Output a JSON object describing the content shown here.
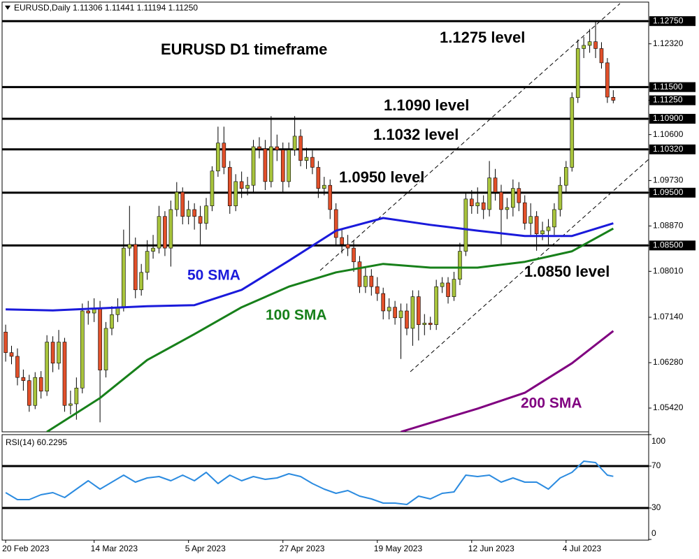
{
  "chart_data": [
    {
      "type": "candlestick",
      "header": "EURUSD,Daily  1.11306 1.11441 1.11194 1.11250",
      "title": "EURUSD D1 timeframe",
      "up_color": "#a8c43c",
      "down_color": "#e2502a",
      "xlim": [
        -0.6,
        109
      ],
      "ylim": [
        1.0497,
        1.1311
      ],
      "yticks": [
        {
          "value": 1.1275,
          "label": "1.12750",
          "highlight": true
        },
        {
          "value": 1.1232,
          "label": "1.12320"
        },
        {
          "value": 1.115,
          "label": "1.11500",
          "highlight": true
        },
        {
          "value": 1.1125,
          "label": "1.11250",
          "highlight": true
        },
        {
          "value": 1.109,
          "label": "1.10900",
          "highlight": true
        },
        {
          "value": 1.106,
          "label": "1.10600"
        },
        {
          "value": 1.1032,
          "label": "1.10320",
          "highlight": true
        },
        {
          "value": 1.0973,
          "label": "1.09730"
        },
        {
          "value": 1.095,
          "label": "1.09500",
          "highlight": true
        },
        {
          "value": 1.0887,
          "label": "1.08870"
        },
        {
          "value": 1.085,
          "label": "1.08500",
          "highlight": true
        },
        {
          "value": 1.0801,
          "label": "1.08010"
        },
        {
          "value": 1.0714,
          "label": "1.07140"
        },
        {
          "value": 1.0628,
          "label": "1.06280"
        },
        {
          "value": 1.0542,
          "label": "1.05420"
        }
      ],
      "levels": [
        {
          "value": 1.1275,
          "label": "1.1275 level"
        },
        {
          "value": 1.115
        },
        {
          "value": 1.109,
          "label": "1.1090 level"
        },
        {
          "value": 1.1032,
          "label": "1.1032 level"
        },
        {
          "value": 1.095,
          "label": "1.0950 level"
        },
        {
          "value": 1.085,
          "label": "1.0850 level"
        }
      ],
      "open": [
        1.0686,
        1.0647,
        1.064,
        1.06,
        1.0594,
        1.0547,
        1.06,
        1.0574,
        1.0667,
        1.0627,
        1.0667,
        1.0547,
        1.055,
        1.058,
        1.0726,
        1.0722,
        1.073,
        1.0614,
        1.0693,
        1.0719,
        1.0733,
        1.0845,
        1.0852,
        1.0766,
        1.0799,
        1.0839,
        1.0845,
        1.0905,
        1.0845,
        1.0918,
        1.0951,
        1.0905,
        1.0918,
        1.0905,
        1.0892,
        1.0925,
        1.0991,
        1.1044,
        1.0998,
        1.0925,
        1.0971,
        1.0958,
        1.0964,
        1.1037,
        1.1033,
        1.0971,
        1.1037,
        1.1031,
        1.0971,
        1.1031,
        1.1057,
        1.1011,
        1.1017,
        1.0998,
        1.0958,
        1.0964,
        1.0918,
        1.0865,
        1.0852,
        1.0845,
        1.0819,
        1.0772,
        1.0792,
        1.0772,
        1.0759,
        1.0726,
        1.0733,
        1.0713,
        1.0726,
        1.0693,
        1.0753,
        1.07,
        1.0703,
        1.07,
        1.0772,
        1.0779,
        1.0753,
        1.0786,
        1.0839,
        1.0938,
        1.0925,
        1.0931,
        1.0918,
        1.0978,
        1.0951,
        1.0918,
        1.0922,
        1.0958,
        1.0931,
        1.0892,
        1.0905,
        1.0872,
        1.0878,
        1.0885,
        1.0918,
        1.0964,
        1.0998,
        1.113,
        1.1223,
        1.1229,
        1.1236,
        1.1223,
        1.1196,
        1.11306
      ],
      "high": [
        1.07,
        1.066,
        1.0655,
        1.0615,
        1.0605,
        1.061,
        1.0612,
        1.068,
        1.0678,
        1.069,
        1.0675,
        1.0575,
        1.06,
        1.074,
        1.0745,
        1.075,
        1.0745,
        1.0705,
        1.0735,
        1.075,
        1.088,
        1.0925,
        1.0865,
        1.0815,
        1.086,
        1.087,
        1.0925,
        1.0915,
        1.0935,
        1.097,
        1.096,
        1.0935,
        1.093,
        1.0925,
        1.094,
        1.1,
        1.1075,
        1.1075,
        1.101,
        1.0985,
        1.099,
        1.098,
        1.105,
        1.1055,
        1.105,
        1.1095,
        1.106,
        1.1045,
        1.1045,
        1.1095,
        1.107,
        1.1035,
        1.103,
        1.101,
        1.098,
        1.0975,
        1.093,
        1.088,
        1.087,
        1.086,
        1.083,
        1.081,
        1.0805,
        1.079,
        1.077,
        1.075,
        1.0745,
        1.074,
        1.074,
        1.0765,
        1.0765,
        1.072,
        1.0715,
        1.0785,
        1.079,
        1.079,
        1.08,
        1.0855,
        1.095,
        1.0955,
        1.096,
        1.0945,
        1.101,
        1.0995,
        1.0965,
        1.094,
        1.0975,
        1.097,
        1.0945,
        1.093,
        1.0915,
        1.0895,
        1.09,
        1.093,
        1.098,
        1.101,
        1.114,
        1.124,
        1.1245,
        1.126,
        1.1275,
        1.1235,
        1.1205,
        1.11441
      ],
      "low": [
        1.063,
        1.0625,
        1.0585,
        1.0575,
        1.0535,
        1.054,
        1.056,
        1.0565,
        1.061,
        1.0615,
        1.0535,
        1.053,
        1.052,
        1.057,
        1.07,
        1.0705,
        1.0515,
        1.06,
        1.068,
        1.0705,
        1.0725,
        1.083,
        1.075,
        1.0755,
        1.0785,
        1.0825,
        1.0835,
        1.083,
        1.081,
        1.0905,
        1.089,
        1.089,
        1.088,
        1.085,
        1.088,
        1.0915,
        1.098,
        1.0985,
        1.091,
        1.0915,
        1.094,
        1.0945,
        1.095,
        1.1015,
        1.0955,
        1.096,
        1.101,
        1.095,
        1.096,
        1.102,
        1.1,
        1.0995,
        1.0985,
        1.094,
        1.0945,
        1.09,
        1.085,
        1.0835,
        1.083,
        1.08,
        1.076,
        1.076,
        1.0755,
        1.0745,
        1.071,
        1.071,
        1.07,
        1.0635,
        1.068,
        1.066,
        1.067,
        1.068,
        1.069,
        1.069,
        1.076,
        1.074,
        1.0745,
        1.0775,
        1.083,
        1.091,
        1.091,
        1.09,
        1.0905,
        1.0935,
        1.085,
        1.09,
        1.0905,
        1.0915,
        1.088,
        1.087,
        1.084,
        1.086,
        1.085,
        1.087,
        1.0905,
        1.095,
        1.099,
        1.112,
        1.1205,
        1.1215,
        1.1205,
        1.1185,
        1.112,
        1.11194
      ],
      "close": [
        1.0647,
        1.064,
        1.06,
        1.0594,
        1.0547,
        1.06,
        1.0574,
        1.0667,
        1.0627,
        1.0667,
        1.0547,
        1.055,
        1.058,
        1.0726,
        1.0722,
        1.073,
        1.0614,
        1.0693,
        1.0719,
        1.0733,
        1.0845,
        1.0852,
        1.0766,
        1.0799,
        1.0839,
        1.0845,
        1.0905,
        1.0845,
        1.0918,
        1.0951,
        1.0905,
        1.0918,
        1.0905,
        1.0892,
        1.0925,
        1.0991,
        1.1044,
        1.0998,
        1.0925,
        1.0971,
        1.0958,
        1.0964,
        1.1037,
        1.1033,
        1.0971,
        1.1037,
        1.1031,
        1.0971,
        1.1031,
        1.1057,
        1.1011,
        1.1017,
        1.0998,
        1.0958,
        1.0964,
        1.0918,
        1.0865,
        1.0852,
        1.0845,
        1.0819,
        1.0772,
        1.0792,
        1.0772,
        1.0759,
        1.0726,
        1.0733,
        1.0713,
        1.0726,
        1.0693,
        1.0753,
        1.07,
        1.0703,
        1.07,
        1.0772,
        1.0779,
        1.0753,
        1.0786,
        1.0839,
        1.0938,
        1.0925,
        1.0931,
        1.0918,
        1.0978,
        1.0951,
        1.0918,
        1.0922,
        1.0958,
        1.0931,
        1.0892,
        1.0905,
        1.0872,
        1.0878,
        1.0885,
        1.0918,
        1.0964,
        1.0998,
        1.113,
        1.1223,
        1.1229,
        1.1236,
        1.1223,
        1.1196,
        1.1131,
        1.1125
      ],
      "series": [
        {
          "name": "50 SMA",
          "color": "#1a1adb",
          "x": [
            0,
            8,
            16,
            24,
            32,
            40,
            48,
            56,
            64,
            72,
            80,
            88,
            96,
            103
          ],
          "values": [
            1.0729,
            1.0727,
            1.0731,
            1.0735,
            1.0737,
            1.0766,
            1.0821,
            1.0878,
            1.0902,
            1.0889,
            1.0878,
            1.0868,
            1.0868,
            1.0892
          ]
        },
        {
          "name": "100 SMA",
          "color": "#17801a",
          "x": [
            7,
            16,
            24,
            32,
            40,
            48,
            56,
            64,
            72,
            80,
            88,
            96,
            103
          ],
          "values": [
            1.0497,
            1.0561,
            1.0633,
            1.0682,
            1.0733,
            1.0772,
            1.0799,
            1.0815,
            1.0808,
            1.0808,
            1.0819,
            1.0839,
            1.0882
          ]
        },
        {
          "name": "200 SMA",
          "color": "#800080",
          "x": [
            67,
            72,
            80,
            88,
            96,
            103
          ],
          "values": [
            1.0497,
            1.0514,
            1.0541,
            1.0571,
            1.0627,
            1.0688
          ]
        }
      ]
    },
    {
      "type": "line",
      "title": "RSI(14) 60.2295",
      "color": "#2b8be0",
      "xlim": [
        -0.6,
        109
      ],
      "ylim": [
        0,
        100
      ],
      "yticks": [
        0,
        30,
        70,
        100
      ],
      "levels": [
        30,
        70
      ],
      "xticks": [
        {
          "value": 0,
          "label": "20 Feb 2023"
        },
        {
          "value": 15,
          "label": "14 Mar 2023"
        },
        {
          "value": 31,
          "label": "5 Apr 2023"
        },
        {
          "value": 47,
          "label": "27 Apr 2023"
        },
        {
          "value": 63,
          "label": "19 May 2023"
        },
        {
          "value": 79,
          "label": "12 Jun 2023"
        },
        {
          "value": 95,
          "label": "4 Jul 2023"
        }
      ],
      "x": [
        0,
        2,
        4,
        6,
        8,
        10,
        12,
        14,
        16,
        18,
        20,
        22,
        24,
        26,
        28,
        30,
        32,
        34,
        36,
        38,
        40,
        42,
        44,
        46,
        48,
        50,
        52,
        54,
        56,
        58,
        60,
        62,
        64,
        66,
        68,
        70,
        72,
        74,
        76,
        78,
        80,
        82,
        84,
        86,
        88,
        90,
        92,
        94,
        96,
        98,
        100,
        102,
        103
      ],
      "values": [
        44.7,
        38,
        38,
        42.7,
        44.7,
        40,
        48,
        56,
        48,
        54.7,
        61.3,
        54.7,
        58.7,
        60,
        56,
        61.3,
        56,
        64,
        53.3,
        61.3,
        56,
        60,
        57.3,
        58.7,
        62.7,
        60,
        53.3,
        48,
        44,
        46.7,
        41.3,
        38.7,
        34.7,
        34.7,
        33.3,
        41.3,
        38.7,
        44,
        45.3,
        61.3,
        60,
        61.3,
        54.7,
        58.7,
        54.7,
        54.7,
        48,
        58.7,
        64,
        74.7,
        73.3,
        61.3,
        60.2295
      ]
    }
  ]
}
